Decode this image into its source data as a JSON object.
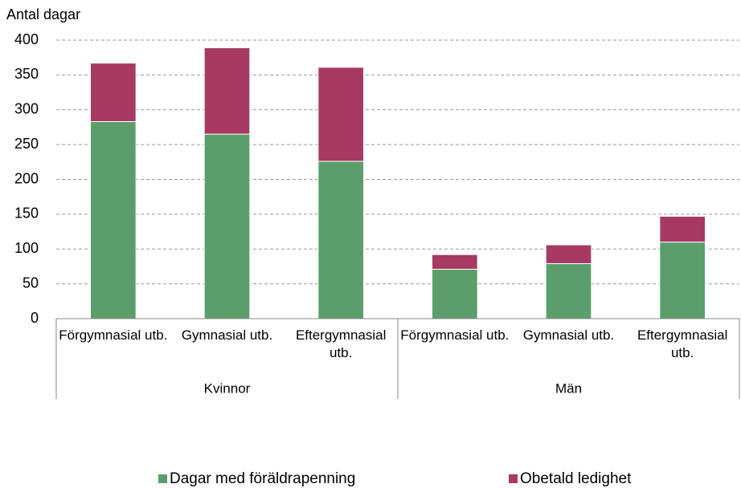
{
  "chart_data": {
    "type": "stacked_bar",
    "y_axis_label": "Antal dagar",
    "groups": [
      {
        "name": "Kvinnor",
        "categories": [
          "Förgymnasial utb.",
          "Gymnasial utb.",
          "Eftergymnasial utb."
        ]
      },
      {
        "name": "Män",
        "categories": [
          "Förgymnasial utb.",
          "Gymnasial utb.",
          "Eftergymnasial utb."
        ]
      }
    ],
    "series": [
      {
        "name": "Dagar med föräldrapenning",
        "color": "#5b9e6b",
        "values": [
          283,
          265,
          226,
          71,
          79,
          110
        ]
      },
      {
        "name": "Obetald ledighet",
        "color": "#a63a62",
        "values": [
          84,
          124,
          135,
          21,
          27,
          37
        ]
      }
    ],
    "ylim": [
      0,
      400
    ],
    "yticks": [
      0,
      50,
      100,
      150,
      200,
      250,
      300,
      350,
      400
    ],
    "grid": true,
    "legend": "bottom"
  }
}
